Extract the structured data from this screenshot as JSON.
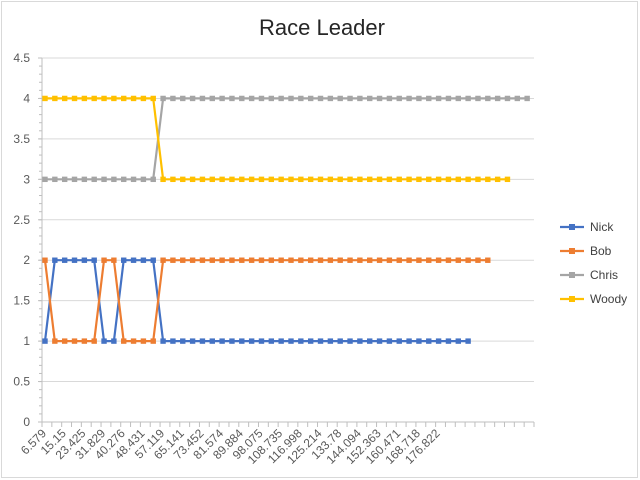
{
  "chart_data": {
    "type": "line",
    "title": "Race Leader",
    "xlabel": "",
    "ylabel": "",
    "ylim": [
      0,
      4.5
    ],
    "y_ticks": [
      "0",
      "0.5",
      "1",
      "1.5",
      "2",
      "2.5",
      "3",
      "3.5",
      "4",
      "4.5"
    ],
    "x_tick_labels": [
      "6.579",
      "15.15",
      "23.425",
      "31.829",
      "40.276",
      "48.431",
      "57.119",
      "65.141",
      "73.452",
      "81.574",
      "89.884",
      "98.075",
      "108.735",
      "116.998",
      "125.214",
      "133.78",
      "144.094",
      "152.363",
      "160.471",
      "168.718",
      "176.822"
    ],
    "gridlines": true,
    "legend_position": "right",
    "series": [
      {
        "name": "Nick",
        "color": "#4472C4",
        "values": [
          1,
          2,
          2,
          2,
          2,
          2,
          1,
          1,
          2,
          2,
          2,
          2,
          1,
          1,
          1,
          1,
          1,
          1,
          1,
          1,
          1,
          1,
          1,
          1,
          1,
          1,
          1,
          1,
          1,
          1,
          1,
          1,
          1,
          1,
          1,
          1,
          1,
          1,
          1,
          1,
          1,
          1,
          1,
          1
        ]
      },
      {
        "name": "Bob",
        "color": "#ED7D31",
        "values": [
          2,
          1,
          1,
          1,
          1,
          1,
          2,
          2,
          1,
          1,
          1,
          1,
          2,
          2,
          2,
          2,
          2,
          2,
          2,
          2,
          2,
          2,
          2,
          2,
          2,
          2,
          2,
          2,
          2,
          2,
          2,
          2,
          2,
          2,
          2,
          2,
          2,
          2,
          2,
          2,
          2,
          2,
          2,
          2,
          2,
          2
        ]
      },
      {
        "name": "Chris",
        "color": "#A5A5A5",
        "values": [
          3,
          3,
          3,
          3,
          3,
          3,
          3,
          3,
          3,
          3,
          3,
          3,
          4,
          4,
          4,
          4,
          4,
          4,
          4,
          4,
          4,
          4,
          4,
          4,
          4,
          4,
          4,
          4,
          4,
          4,
          4,
          4,
          4,
          4,
          4,
          4,
          4,
          4,
          4,
          4,
          4,
          4,
          4,
          4,
          4,
          4,
          4,
          4,
          4,
          4
        ]
      },
      {
        "name": "Woody",
        "color": "#FFC000",
        "values": [
          4,
          4,
          4,
          4,
          4,
          4,
          4,
          4,
          4,
          4,
          4,
          4,
          3,
          3,
          3,
          3,
          3,
          3,
          3,
          3,
          3,
          3,
          3,
          3,
          3,
          3,
          3,
          3,
          3,
          3,
          3,
          3,
          3,
          3,
          3,
          3,
          3,
          3,
          3,
          3,
          3,
          3,
          3,
          3,
          3,
          3,
          3,
          3
        ]
      }
    ]
  }
}
